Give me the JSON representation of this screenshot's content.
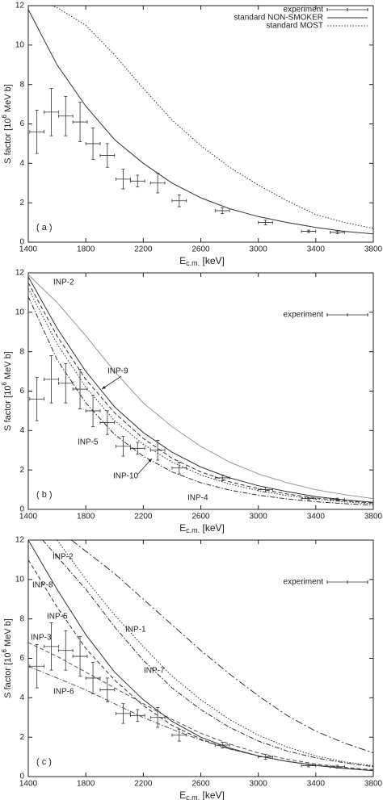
{
  "chart_data": [
    {
      "type": "line",
      "panel_label": "( a )",
      "xlabel": {
        "main": "E",
        "sub": "c.m.",
        "rest": " [keV]"
      },
      "ylabel": {
        "main": "S factor [10",
        "sup": "6",
        "rest": " MeV b]"
      },
      "xlim": [
        1400,
        3800
      ],
      "xticks": [
        1400,
        1800,
        2200,
        2600,
        3000,
        3400,
        3800
      ],
      "ylim": [
        0,
        12
      ],
      "yticks": [
        0,
        2,
        4,
        6,
        8,
        10,
        12
      ],
      "legend": "upper right",
      "curve_labels": false,
      "series": [
        {
          "name": "experiment",
          "style": "errorbar",
          "color": "#333333",
          "x": [
            1460,
            1560,
            1660,
            1760,
            1850,
            1950,
            2060,
            2160,
            2300,
            2450,
            2750,
            3050,
            3350,
            3550
          ],
          "xerrors": [
            50,
            50,
            50,
            50,
            50,
            50,
            50,
            50,
            50,
            50,
            50,
            50,
            50,
            50
          ],
          "values": [
            5.6,
            6.6,
            6.4,
            6.1,
            5.0,
            4.4,
            3.2,
            3.1,
            3.0,
            2.1,
            1.6,
            1.0,
            0.55,
            0.5
          ],
          "errors": [
            1.1,
            1.2,
            1.0,
            1.0,
            0.8,
            0.6,
            0.5,
            0.3,
            0.5,
            0.3,
            0.15,
            0.12,
            0.06,
            0.07
          ]
        },
        {
          "name": "standard NON-SMOKER",
          "style": "solid",
          "color": "#333333",
          "x": [
            1400,
            1600,
            1800,
            2000,
            2200,
            2400,
            2600,
            2800,
            3000,
            3200,
            3400,
            3600,
            3800
          ],
          "values": [
            11.8,
            9.0,
            6.9,
            5.2,
            4.0,
            3.0,
            2.25,
            1.7,
            1.3,
            1.0,
            0.75,
            0.55,
            0.42
          ]
        },
        {
          "name": "standard MOST",
          "style": "dotted",
          "color": "#333333",
          "x": [
            1560,
            1600,
            1800,
            2000,
            2200,
            2400,
            2600,
            2800,
            3000,
            3200,
            3400,
            3600,
            3800
          ],
          "values": [
            12,
            11.9,
            11.0,
            9.5,
            7.8,
            6.2,
            4.9,
            3.8,
            2.9,
            2.1,
            1.4,
            1.0,
            0.7
          ]
        }
      ]
    },
    {
      "type": "line",
      "panel_label": "( b )",
      "xlabel": {
        "main": "E",
        "sub": "c.m.",
        "rest": " [keV]"
      },
      "ylabel": {
        "main": "S factor [10",
        "sup": "6",
        "rest": " MeV b]"
      },
      "xlim": [
        1400,
        3800
      ],
      "xticks": [
        1400,
        1800,
        2200,
        2600,
        3000,
        3400,
        3800
      ],
      "ylim": [
        0,
        12
      ],
      "yticks": [
        0,
        2,
        4,
        6,
        8,
        10,
        12
      ],
      "legend": "upper right",
      "curve_labels": true,
      "series": [
        {
          "name": "experiment",
          "style": "errorbar",
          "color": "#333333",
          "x": [
            1460,
            1560,
            1660,
            1760,
            1850,
            1950,
            2060,
            2160,
            2300,
            2450,
            2750,
            3050,
            3350,
            3550
          ],
          "xerrors": [
            50,
            50,
            50,
            50,
            50,
            50,
            50,
            50,
            50,
            50,
            50,
            50,
            50,
            50
          ],
          "values": [
            5.6,
            6.6,
            6.4,
            6.1,
            5.0,
            4.4,
            3.2,
            3.1,
            3.0,
            2.1,
            1.6,
            1.0,
            0.55,
            0.5
          ],
          "errors": [
            1.1,
            1.2,
            1.0,
            1.0,
            0.8,
            0.6,
            0.5,
            0.3,
            0.5,
            0.3,
            0.15,
            0.12,
            0.06,
            0.07
          ]
        },
        {
          "name": "INP-2",
          "style": "solid",
          "color": "#999999",
          "x": [
            1400,
            1600,
            1800,
            2000,
            2200,
            2400,
            2600,
            2800,
            3000,
            3200,
            3400,
            3600,
            3800
          ],
          "values": [
            11.9,
            10.5,
            8.8,
            7.0,
            5.4,
            4.2,
            3.2,
            2.4,
            1.8,
            1.35,
            1.0,
            0.75,
            0.55
          ]
        },
        {
          "name": "INP-9",
          "style": "solid",
          "color": "#333333",
          "x": [
            1400,
            1600,
            1800,
            2000,
            2200,
            2400,
            2600,
            2800,
            3000,
            3200,
            3400,
            3600,
            3800
          ],
          "values": [
            11.8,
            9.2,
            7.0,
            5.2,
            3.9,
            2.9,
            2.15,
            1.6,
            1.2,
            0.9,
            0.65,
            0.48,
            0.36
          ]
        },
        {
          "name": "INP-5",
          "style": "dashed",
          "color": "#333333",
          "x": [
            1400,
            1600,
            1800,
            2000,
            2200,
            2400,
            2600,
            2800,
            3000,
            3200,
            3400,
            3600,
            3800
          ],
          "values": [
            11.5,
            8.8,
            6.6,
            4.9,
            3.6,
            2.6,
            1.9,
            1.4,
            1.05,
            0.78,
            0.58,
            0.43,
            0.32
          ]
        },
        {
          "name": "INP-10",
          "style": "dotted",
          "color": "#333333",
          "x": [
            1400,
            1600,
            1800,
            2000,
            2200,
            2400,
            2600,
            2800,
            3000,
            3200,
            3400,
            3600,
            3800
          ],
          "values": [
            11.2,
            8.4,
            6.2,
            4.5,
            3.3,
            2.4,
            1.75,
            1.28,
            0.95,
            0.7,
            0.52,
            0.38,
            0.28
          ]
        },
        {
          "name": "INP-4",
          "style": "dashdot",
          "color": "#333333",
          "x": [
            1400,
            1600,
            1800,
            2000,
            2200,
            2400,
            2600,
            2800,
            3000,
            3200,
            3400,
            3600,
            3800
          ],
          "values": [
            10.8,
            7.6,
            5.4,
            3.8,
            2.7,
            1.9,
            1.35,
            0.98,
            0.72,
            0.53,
            0.39,
            0.29,
            0.21
          ]
        }
      ]
    },
    {
      "type": "line",
      "panel_label": "( c )",
      "xlabel": {
        "main": "E",
        "sub": "c.m.",
        "rest": " [keV]"
      },
      "ylabel": {
        "main": "S factor [10",
        "sup": "6",
        "rest": " MeV b]"
      },
      "xlim": [
        1400,
        3800
      ],
      "xticks": [
        1400,
        1800,
        2200,
        2600,
        3000,
        3400,
        3800
      ],
      "ylim": [
        0,
        12
      ],
      "yticks": [
        0,
        2,
        4,
        6,
        8,
        10,
        12
      ],
      "legend": "upper right",
      "curve_labels": true,
      "series": [
        {
          "name": "experiment",
          "style": "errorbar",
          "color": "#333333",
          "x": [
            1460,
            1560,
            1660,
            1760,
            1850,
            1950,
            2060,
            2160,
            2300,
            2450,
            2750,
            3050,
            3350,
            3550
          ],
          "xerrors": [
            50,
            50,
            50,
            50,
            50,
            50,
            50,
            50,
            50,
            50,
            50,
            50,
            50,
            50
          ],
          "values": [
            5.6,
            6.6,
            6.4,
            6.1,
            5.0,
            4.4,
            3.2,
            3.1,
            3.0,
            2.1,
            1.6,
            1.0,
            0.55,
            0.5
          ],
          "errors": [
            1.1,
            1.2,
            1.0,
            1.0,
            0.8,
            0.6,
            0.5,
            0.3,
            0.5,
            0.3,
            0.15,
            0.12,
            0.06,
            0.07
          ]
        },
        {
          "name": "INP-2",
          "style": "dashdot",
          "color": "#333333",
          "x": [
            1500,
            1800,
            2000,
            2200,
            2400,
            2600,
            2800,
            3000,
            3200,
            3400,
            3600,
            3800
          ],
          "values": [
            12,
            9.5,
            7.6,
            5.9,
            4.5,
            3.4,
            2.5,
            1.8,
            1.3,
            0.95,
            0.7,
            0.5
          ]
        },
        {
          "name": "INP-8",
          "style": "solid",
          "color": "#333333",
          "x": [
            1400,
            1600,
            1800,
            2000,
            2200,
            2400,
            2600,
            2800,
            3000,
            3200,
            3400,
            3600,
            3800
          ],
          "values": [
            12,
            9.5,
            7.2,
            5.3,
            3.9,
            2.8,
            2.0,
            1.45,
            1.05,
            0.77,
            0.56,
            0.41,
            0.3
          ]
        },
        {
          "name": "INP-1",
          "style": "longdashdot",
          "color": "#333333",
          "x": [
            1700,
            2000,
            2200,
            2400,
            2600,
            2800,
            3000,
            3200,
            3400,
            3600,
            3800
          ],
          "values": [
            12,
            10.3,
            9.0,
            7.7,
            6.4,
            5.2,
            4.1,
            3.1,
            2.3,
            1.7,
            1.2
          ]
        },
        {
          "name": "INP-5",
          "style": "dashed",
          "color": "#333333",
          "x": [
            1400,
            1600,
            1800,
            2000,
            2200,
            2400,
            2600,
            2800,
            3000,
            3200,
            3400,
            3600,
            3800
          ],
          "values": [
            11.0,
            8.6,
            6.5,
            4.9,
            3.6,
            2.6,
            1.9,
            1.4,
            1.05,
            0.78,
            0.58,
            0.43,
            0.32
          ]
        },
        {
          "name": "INP-3",
          "style": "dashed",
          "color": "#555555",
          "x": [
            1400,
            1600,
            1800,
            2000,
            2200,
            2400,
            2600,
            2800,
            3000,
            3200,
            3400,
            3600,
            3800
          ],
          "values": [
            6.8,
            6.1,
            5.3,
            4.5,
            3.7,
            2.9,
            2.2,
            1.65,
            1.2,
            0.88,
            0.64,
            0.47,
            0.35
          ]
        },
        {
          "name": "INP-7",
          "style": "dotted",
          "color": "#333333",
          "x": [
            1600,
            1800,
            2000,
            2200,
            2400,
            2600,
            2800,
            3000,
            3200,
            3400,
            3600,
            3800
          ],
          "values": [
            12,
            10.0,
            8.2,
            6.6,
            5.1,
            3.9,
            2.9,
            2.1,
            1.5,
            1.05,
            0.75,
            0.55
          ]
        },
        {
          "name": "INP-6",
          "style": "dashdot",
          "color": "#555555",
          "x": [
            1400,
            1600,
            1800,
            2000,
            2200,
            2400,
            2600,
            2800,
            3000,
            3200,
            3400,
            3600,
            3800
          ],
          "values": [
            5.6,
            5.0,
            4.4,
            3.7,
            3.0,
            2.4,
            1.85,
            1.4,
            1.05,
            0.78,
            0.58,
            0.43,
            0.32
          ]
        }
      ]
    }
  ]
}
